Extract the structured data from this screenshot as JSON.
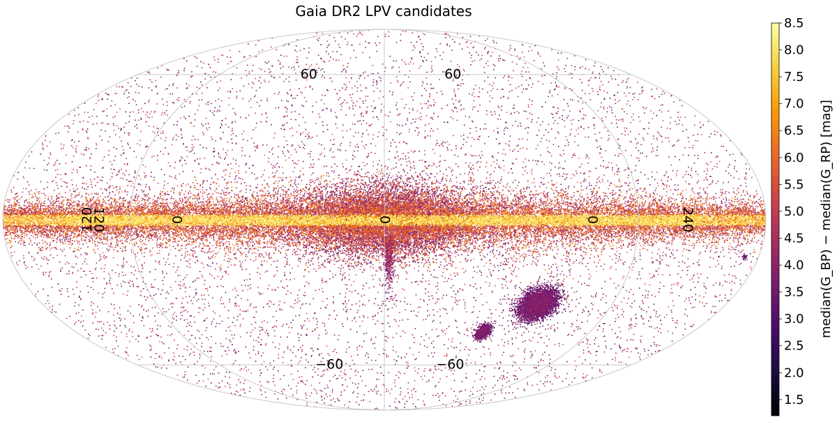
{
  "chart_data": {
    "type": "scatter",
    "projection": "mollweide",
    "title": "Gaia DR2 LPV candidates",
    "grid": true,
    "grid_lines": {
      "latitude_labels": [
        {
          "text": "60",
          "lon": -55,
          "lat": 60
        },
        {
          "text": "60",
          "lon": 50,
          "lat": 60
        },
        {
          "text": "−60",
          "lon": -40,
          "lat": -60
        },
        {
          "text": "−60",
          "lon": 48,
          "lat": -60
        }
      ],
      "longitude_labels": [
        {
          "text": "0",
          "lon": -98,
          "lat": 0,
          "rotate": 90
        },
        {
          "text": "120",
          "lon": -135,
          "lat": 0,
          "rotate": 90
        },
        {
          "text": "120",
          "lon": -140,
          "lat": 0,
          "rotate": -90
        },
        {
          "text": "0",
          "lon": 0,
          "lat": 0,
          "rotate": 90
        },
        {
          "text": "0",
          "lon": 98,
          "lat": 0,
          "rotate": 90
        },
        {
          "text": "240",
          "lon": 143,
          "lat": 0,
          "rotate": 90
        }
      ]
    },
    "colorbar": {
      "label": "median(G_BP) − median(G_RP)  [mag]",
      "min": 1.2,
      "max": 8.5,
      "ticks": [
        "1.5",
        "2.0",
        "2.5",
        "3.0",
        "3.5",
        "4.0",
        "4.5",
        "5.0",
        "5.5",
        "6.0",
        "6.5",
        "7.0",
        "7.5",
        "8.0",
        "8.5"
      ],
      "colormap": "inferno",
      "colors": [
        "#000004",
        "#1b0c41",
        "#4a0c6b",
        "#781c6d",
        "#a52c60",
        "#cf4446",
        "#ed6925",
        "#fb9b06",
        "#f7d13d",
        "#fcffa4"
      ]
    },
    "features": [
      {
        "name": "galactic-plane",
        "lon_range": [
          -180,
          180
        ],
        "lat_center": 0
      },
      {
        "name": "LMC",
        "lon": 80.5,
        "lat": -32.9
      },
      {
        "name": "SMC",
        "lon": 57.3,
        "lat": -44.3
      },
      {
        "name": "bulge-extension",
        "lon": 2,
        "lat": -12
      }
    ]
  }
}
